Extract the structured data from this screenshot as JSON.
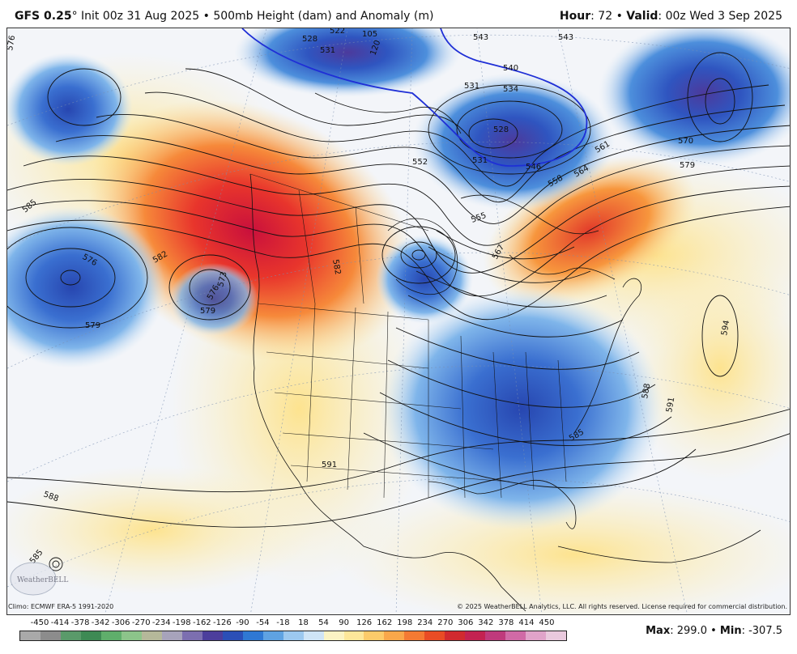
{
  "header": {
    "model": "GFS 0.25",
    "degree": "°",
    "init": "Init 00z 31 Aug 2025",
    "separator": "•",
    "product": "500mb Height (dam) and Anomaly (m)",
    "hour_label": "Hour",
    "hour_value": ": 72",
    "valid_label": "Valid",
    "valid_value": ": 00z Wed 3 Sep 2025"
  },
  "footer": {
    "climo": "Climo: ECMWF ERA-5 1991-2020",
    "copyright": "© 2025 WeatherBELL Analytics, LLC. All rights reserved. License required for commercial distribution."
  },
  "logo": {
    "text": "WeatherBELL",
    "icon": "weatherbell-logo-icon"
  },
  "colorbar": {
    "ticks": [
      "-450",
      "-414",
      "-378",
      "-342",
      "-306",
      "-270",
      "-234",
      "-198",
      "-162",
      "-126",
      "-90",
      "-54",
      "-18",
      "18",
      "54",
      "90",
      "126",
      "162",
      "198",
      "234",
      "270",
      "306",
      "342",
      "378",
      "414",
      "450"
    ],
    "colors": [
      "#a9a9a9",
      "#8c8c8c",
      "#5a9a6a",
      "#3e8a54",
      "#5fae6b",
      "#8cc48a",
      "#b5b89a",
      "#a7a3bb",
      "#7c6fb0",
      "#4c3e9c",
      "#2b4fb7",
      "#2f78d3",
      "#5fa2e2",
      "#9cc8ef",
      "#cfe4f6",
      "#fbf3c4",
      "#fde79a",
      "#fccb6a",
      "#f9a74a",
      "#f47a33",
      "#e94c25",
      "#d12a2f",
      "#c32251",
      "#bf3a7c",
      "#d06aa6",
      "#e0a3c9",
      "#e9c9dd"
    ]
  },
  "stats": {
    "max_label": "Max",
    "max_value": ": 299.0",
    "dot": "•",
    "min_label": "Min",
    "min_value": ": -307.5"
  },
  "contour_labels": [
    "576",
    "585",
    "582",
    "579",
    "576",
    "573",
    "576",
    "579",
    "582",
    "528",
    "531",
    "522",
    "105",
    "120",
    "531",
    "534",
    "531",
    "528",
    "543",
    "543",
    "540",
    "546",
    "552",
    "570",
    "579",
    "561",
    "564",
    "558",
    "555",
    "567",
    "594",
    "588",
    "591",
    "585",
    "591",
    "588",
    "585"
  ],
  "colors": {
    "ridge_core": "#d0173f",
    "ridge": "#f06a2a",
    "warm": "#fde79a",
    "trough_core": "#2a49b8",
    "trough": "#4d8fdc",
    "cool": "#bcd9f3",
    "height_line": "#111111",
    "reference_line": "#1f2fd6"
  }
}
